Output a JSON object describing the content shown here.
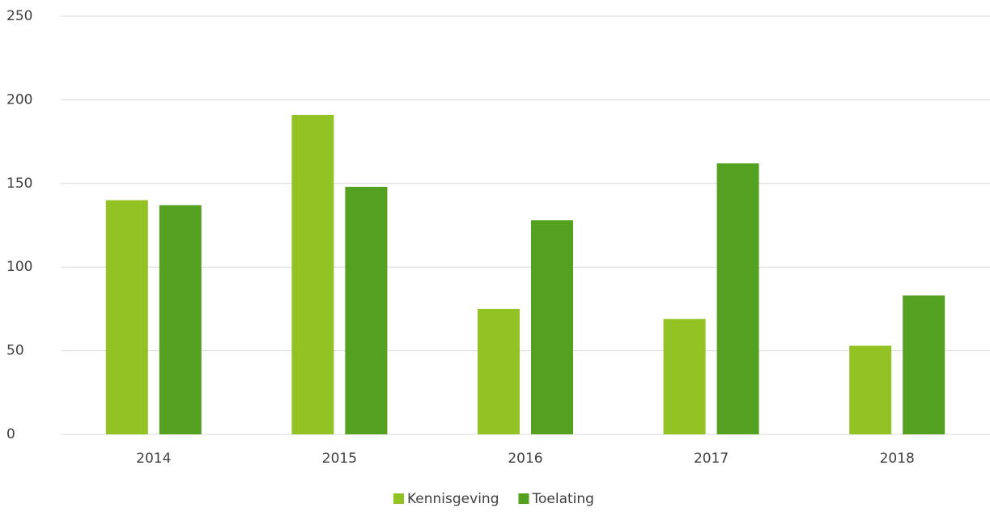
{
  "chart_data": {
    "type": "bar",
    "categories": [
      "2014",
      "2015",
      "2016",
      "2017",
      "2018"
    ],
    "series": [
      {
        "name": "Kennisgeving",
        "color": "#93c225",
        "values": [
          140,
          191,
          75,
          69,
          53
        ]
      },
      {
        "name": "Toelating",
        "color": "#54a021",
        "values": [
          137,
          148,
          128,
          162,
          83
        ]
      }
    ],
    "ylim": [
      0,
      250
    ],
    "yticks": [
      0,
      50,
      100,
      150,
      200,
      250
    ],
    "grid": true,
    "legend": "bottom"
  }
}
